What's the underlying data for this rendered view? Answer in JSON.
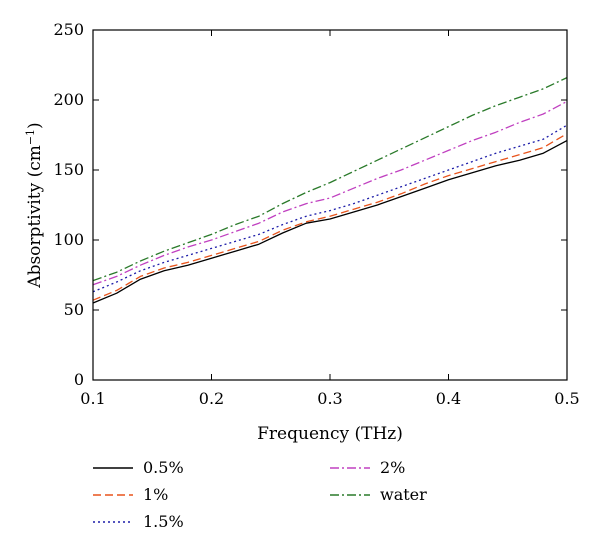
{
  "chart_data": {
    "type": "line",
    "xlabel": "Frequency (THz)",
    "ylabel": "Absorptivity (cm",
    "ylabel_superscript": "−1",
    "ylabel_suffix": ")",
    "xlim": [
      0.1,
      0.5
    ],
    "ylim": [
      0,
      250
    ],
    "x_ticks": [
      "0.1",
      "0.2",
      "0.3",
      "0.4",
      "0.5"
    ],
    "y_ticks": [
      "0",
      "50",
      "100",
      "150",
      "200",
      "250"
    ],
    "grid": false,
    "legend_position": "bottom",
    "x": [
      0.1,
      0.12,
      0.14,
      0.16,
      0.18,
      0.2,
      0.22,
      0.24,
      0.26,
      0.28,
      0.3,
      0.32,
      0.34,
      0.36,
      0.38,
      0.4,
      0.42,
      0.44,
      0.46,
      0.48,
      0.5
    ],
    "series": [
      {
        "name": "0.5%",
        "color": "#000000",
        "dash": "solid",
        "values": [
          55,
          62,
          72,
          78,
          82,
          87,
          92,
          97,
          105,
          112,
          115,
          120,
          125,
          131,
          137,
          143,
          148,
          153,
          157,
          162,
          171
        ]
      },
      {
        "name": "1%",
        "color": "#e8541c",
        "dash": "dashed",
        "values": [
          57,
          64,
          74,
          80,
          84,
          89,
          94,
          99,
          107,
          113,
          117,
          122,
          127,
          133,
          140,
          146,
          151,
          156,
          161,
          166,
          176
        ]
      },
      {
        "name": "1.5%",
        "color": "#1c1ca8",
        "dash": "dotted",
        "values": [
          63,
          70,
          78,
          84,
          89,
          94,
          99,
          104,
          111,
          117,
          121,
          126,
          132,
          138,
          144,
          150,
          156,
          162,
          167,
          172,
          182
        ]
      },
      {
        "name": "2%",
        "color": "#c040c0",
        "dash": "dashdot",
        "values": [
          68,
          74,
          82,
          89,
          95,
          100,
          106,
          112,
          120,
          126,
          130,
          137,
          144,
          150,
          157,
          164,
          171,
          177,
          184,
          190,
          199
        ]
      },
      {
        "name": "water",
        "color": "#2a7a2a",
        "dash": "dashdot",
        "values": [
          71,
          77,
          85,
          92,
          98,
          104,
          111,
          117,
          126,
          134,
          141,
          149,
          157,
          165,
          173,
          181,
          189,
          196,
          202,
          208,
          216
        ]
      }
    ]
  }
}
